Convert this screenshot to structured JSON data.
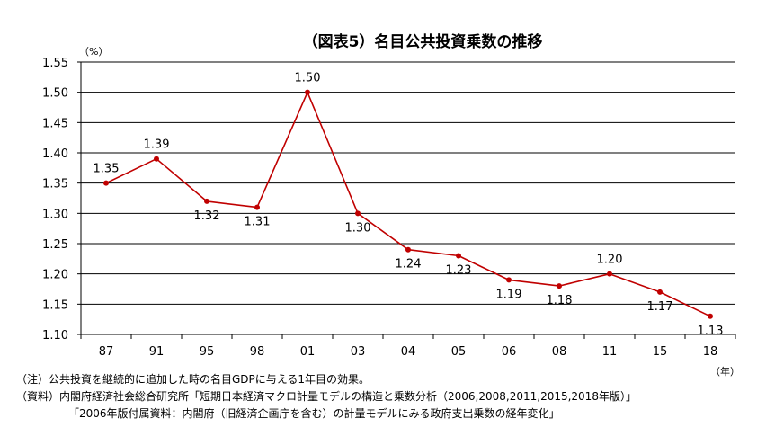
{
  "chart_data": {
    "type": "line",
    "title": "（図表5）名目公共投資乗数の推移",
    "y_unit": "（%）",
    "x_unit": "（年）",
    "categories": [
      "87",
      "91",
      "95",
      "98",
      "01",
      "03",
      "04",
      "05",
      "06",
      "08",
      "11",
      "15",
      "18"
    ],
    "values": [
      1.35,
      1.39,
      1.32,
      1.31,
      1.5,
      1.3,
      1.24,
      1.23,
      1.19,
      1.18,
      1.2,
      1.17,
      1.13
    ],
    "data_labels": [
      "1.35",
      "1.39",
      "1.32",
      "1.31",
      "1.50",
      "1.30",
      "1.24",
      "1.23",
      "1.19",
      "1.18",
      "1.20",
      "1.17",
      "1.13"
    ],
    "y_ticks": [
      "1.10",
      "1.15",
      "1.20",
      "1.25",
      "1.30",
      "1.35",
      "1.40",
      "1.45",
      "1.50",
      "1.55"
    ],
    "ylim": [
      1.1,
      1.55
    ],
    "grid": true,
    "legend": "none",
    "line_color": "#C00000"
  },
  "notes": {
    "note1": "（注）公共投資を継続的に追加した時の名目GDPに与える1年目の効果。",
    "source1": "（資料）内閣府経済社会総合研究所「短期日本経済マクロ計量モデルの構造と乗数分析（2006,2008,2011,2015,2018年版）」",
    "source2": "「2006年版付属資料：内閣府（旧経済企画庁を含む）の計量モデルにみる政府支出乗数の経年変化」"
  }
}
